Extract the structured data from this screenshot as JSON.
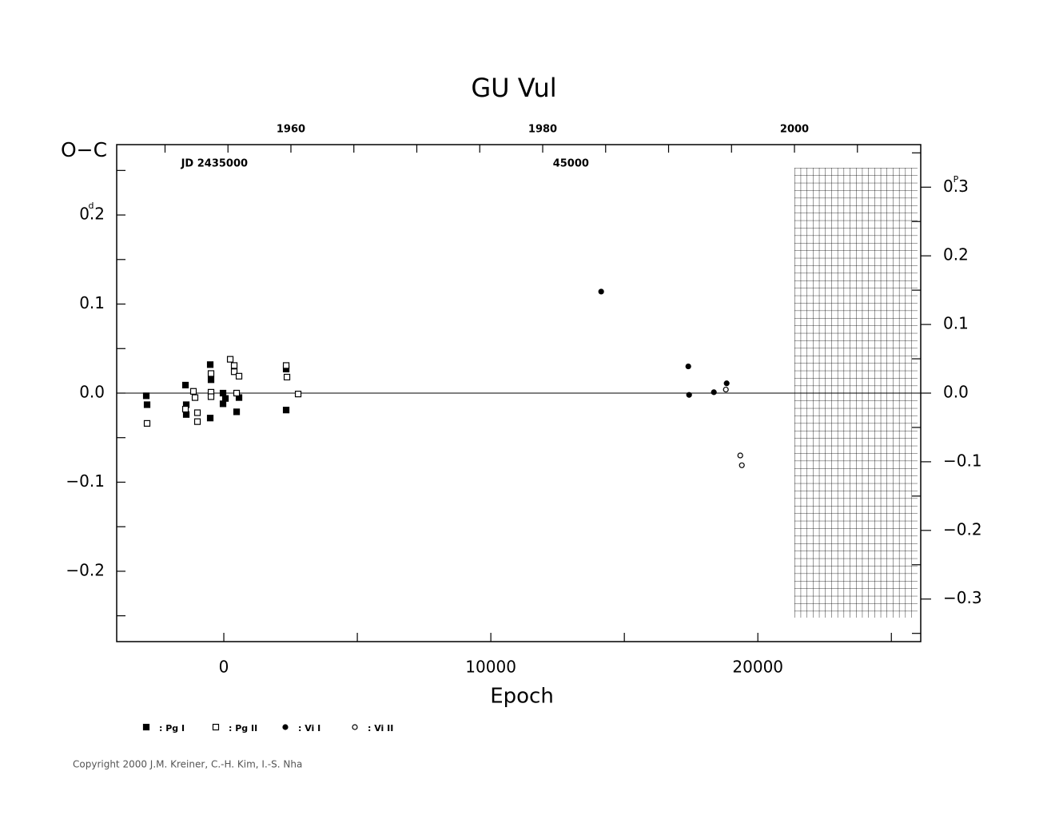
{
  "chart_data": {
    "type": "scatter",
    "title": "GU Vul",
    "x_label": "Epoch",
    "y_label": "O−C",
    "y_unit": "d",
    "y2_unit": "P",
    "xlim": [
      -4012,
      26100
    ],
    "xticks": [
      0,
      10000,
      20000
    ],
    "xminor": [
      5000,
      15000,
      25000
    ],
    "ylim": [
      -0.279,
      0.279
    ],
    "yticks": [
      0.2,
      0.1,
      {
        "value": 0,
        "label": "0.0"
      },
      {
        "value": -0.1,
        "label": "−0.1"
      },
      {
        "value": -0.2,
        "label": "−0.2"
      }
    ],
    "yminor": [
      0.25,
      0.15,
      0.05,
      -0.05,
      -0.15,
      -0.25
    ],
    "y2lim": [
      -0.362,
      0.362
    ],
    "y2ticks": [
      0.3,
      0.2,
      0.1,
      {
        "value": 0,
        "label": "0.0"
      },
      {
        "value": -0.1,
        "label": "−0.1"
      },
      {
        "value": -0.2,
        "label": "−0.2"
      },
      {
        "value": -0.3,
        "label": "−0.3"
      }
    ],
    "y2minor": [
      0.35,
      0.25,
      0.15,
      0.05,
      -0.05,
      -0.15,
      -0.25,
      -0.35
    ],
    "top_axis": {
      "lim": [
        1946.16,
        2010.03
      ],
      "ticks": [
        1960,
        1980,
        2000
      ],
      "minor": [
        1950,
        1955,
        1965,
        1970,
        1975,
        1985,
        1990,
        1995,
        2005
      ]
    },
    "annotations": [
      {
        "text": "JD 2435000",
        "x": -350
      },
      {
        "text": "45000",
        "x": 13000
      }
    ],
    "zero_line": true,
    "series": [
      {
        "name": ": Pg I",
        "marker": "square",
        "filled": true,
        "color": "#000000",
        "x": [
          -2904,
          -2874,
          -1437,
          -1407,
          -1407,
          -509,
          -479,
          -509,
          -30,
          -30,
          60,
          479,
          569,
          2335,
          2335
        ],
        "values": [
          -0.003,
          -0.013,
          0.009,
          -0.013,
          -0.024,
          0.032,
          0.015,
          -0.028,
          0.0,
          -0.012,
          -0.006,
          -0.021,
          -0.005,
          0.027,
          -0.019
        ]
      },
      {
        "name": ": Pg II",
        "marker": "square",
        "filled": false,
        "color": "#000000",
        "x": [
          -2874,
          -1138,
          -1078,
          -1437,
          -988,
          -988,
          -479,
          -479,
          -479,
          240,
          389,
          389,
          479,
          569,
          2335,
          2365,
          2784
        ],
        "values": [
          -0.034,
          0.002,
          -0.005,
          -0.018,
          -0.022,
          -0.032,
          0.022,
          0.001,
          -0.004,
          0.038,
          0.031,
          0.024,
          0.0,
          0.019,
          0.031,
          0.018,
          -0.001
        ]
      },
      {
        "name": ": Vi I",
        "marker": "circle",
        "filled": true,
        "color": "#000000",
        "x": [
          14132,
          17395,
          17425,
          18353,
          18832
        ],
        "values": [
          0.114,
          0.03,
          -0.002,
          0.001,
          0.011
        ]
      },
      {
        "name": ": Vi II",
        "marker": "circle",
        "filled": false,
        "color": "#000000",
        "x": [
          18802,
          19341,
          19401
        ],
        "values": [
          0.004,
          -0.07,
          -0.081
        ]
      }
    ],
    "copyright": "Copyright 2000 J.M. Kreiner, C.-H. Kim, I.-S. Nha"
  }
}
